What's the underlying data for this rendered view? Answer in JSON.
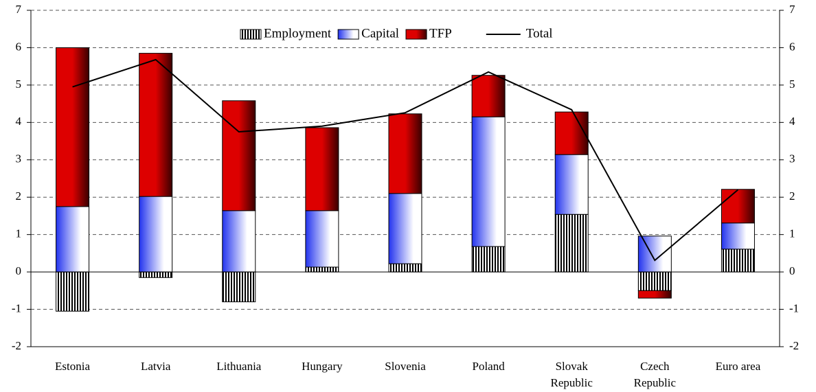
{
  "chart_data": {
    "type": "stacked-bar-line",
    "categories": [
      "Estonia",
      "Latvia",
      "Lithuania",
      "Hungary",
      "Slovenia",
      "Poland",
      "Slovak\nRepublic",
      "Czech\nRepublic",
      "Euro area"
    ],
    "series": [
      {
        "name": "Employment",
        "color": "#000000",
        "values": [
          -1.05,
          -0.15,
          -0.8,
          0.13,
          0.22,
          0.68,
          1.54,
          -0.5,
          0.61
        ]
      },
      {
        "name": "Capital",
        "color": "#2233ee",
        "values": [
          1.75,
          2.02,
          1.64,
          1.51,
          1.88,
          3.47,
          1.6,
          0.96,
          0.7
        ]
      },
      {
        "name": "TFP",
        "color": "#dd0000",
        "values": [
          4.25,
          3.83,
          2.94,
          2.22,
          2.13,
          1.11,
          1.14,
          -0.2,
          0.9
        ]
      }
    ],
    "line": {
      "name": "Total",
      "color": "#000000",
      "values": [
        4.95,
        5.68,
        3.75,
        3.9,
        4.26,
        5.35,
        4.34,
        0.31,
        2.2
      ]
    },
    "ylim": [
      -2,
      7
    ],
    "yticks": [
      -2,
      -1,
      0,
      1,
      2,
      3,
      4,
      5,
      6,
      7
    ],
    "grid": true
  }
}
